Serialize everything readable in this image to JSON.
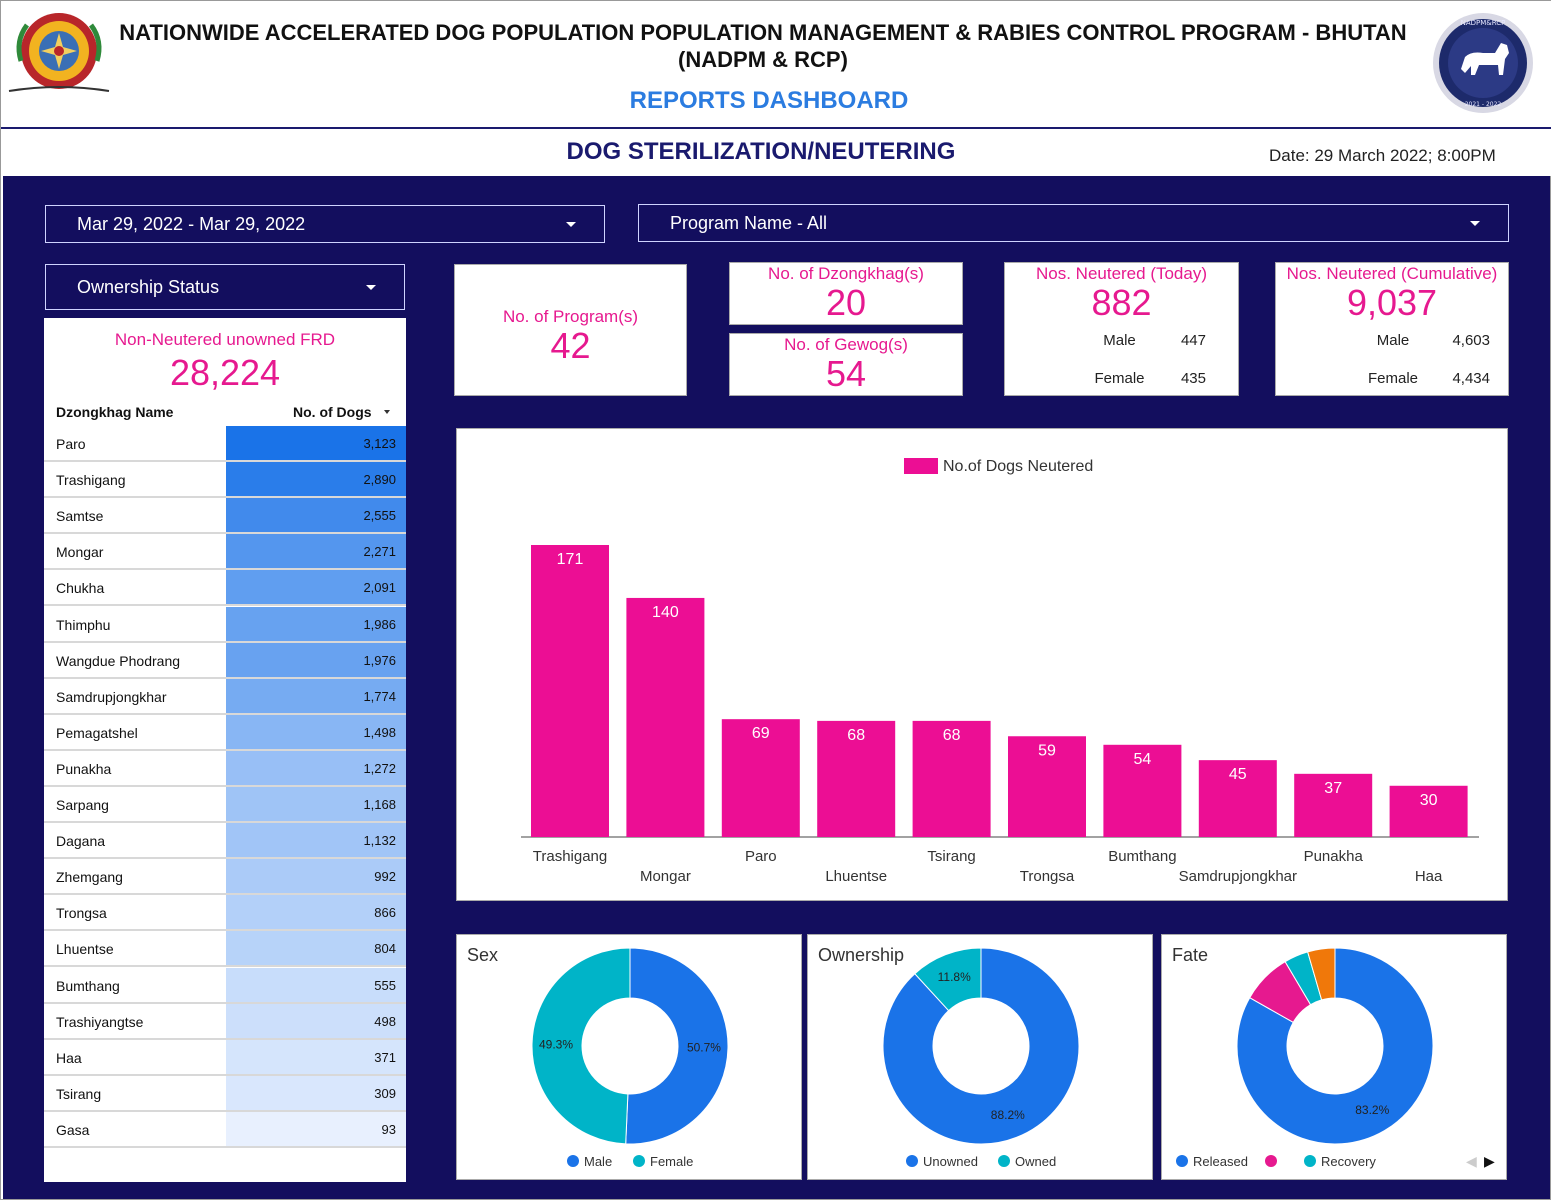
{
  "header": {
    "title_line1": "NATIONWIDE ACCELERATED DOG POPULATION POPULATION MANAGEMENT & RABIES CONTROL PROGRAM - BHUTAN",
    "title_line2": "(NADPM & RCP)",
    "reports": "REPORTS DASHBOARD",
    "section": "DOG STERILIZATION/NEUTERING",
    "date": "Date: 29 March 2022; 8:00PM",
    "badge_text_top": "NADPM&RCP",
    "badge_text_bottom": "2021 - 2022"
  },
  "filters": {
    "date_range": "Mar 29, 2022 - Mar 29, 2022",
    "program": "Program Name - All",
    "ownership": "Ownership Status"
  },
  "cards": {
    "programs": {
      "label": "No. of Program(s)",
      "value": "42"
    },
    "dzongkhags": {
      "label": "No. of Dzongkhag(s)",
      "value": "20"
    },
    "gewogs": {
      "label": "No. of Gewog(s)",
      "value": "54"
    },
    "today": {
      "label": "Nos. Neutered (Today)",
      "value": "882",
      "male_label": "Male",
      "male": "447",
      "female_label": "Female",
      "female": "435"
    },
    "cumulative": {
      "label": "Nos. Neutered (Cumulative)",
      "value": "9,037",
      "male_label": "Male",
      "male": "4,603",
      "female_label": "Female",
      "female": "4,434"
    }
  },
  "table": {
    "label": "Non-Neutered unowned FRD",
    "total": "28,224",
    "col_name": "Dzongkhag Name",
    "col_value": "No. of Dogs",
    "rows": [
      {
        "name": "Paro",
        "value": "3,123",
        "n": 3123
      },
      {
        "name": "Trashigang",
        "value": "2,890",
        "n": 2890
      },
      {
        "name": "Samtse",
        "value": "2,555",
        "n": 2555
      },
      {
        "name": "Mongar",
        "value": "2,271",
        "n": 2271
      },
      {
        "name": "Chukha",
        "value": "2,091",
        "n": 2091
      },
      {
        "name": "Thimphu",
        "value": "1,986",
        "n": 1986
      },
      {
        "name": "Wangdue Phodrang",
        "value": "1,976",
        "n": 1976
      },
      {
        "name": "Samdrupjongkhar",
        "value": "1,774",
        "n": 1774
      },
      {
        "name": "Pemagatshel",
        "value": "1,498",
        "n": 1498
      },
      {
        "name": "Punakha",
        "value": "1,272",
        "n": 1272
      },
      {
        "name": "Sarpang",
        "value": "1,168",
        "n": 1168
      },
      {
        "name": "Dagana",
        "value": "1,132",
        "n": 1132
      },
      {
        "name": "Zhemgang",
        "value": "992",
        "n": 992
      },
      {
        "name": "Trongsa",
        "value": "866",
        "n": 866
      },
      {
        "name": "Lhuentse",
        "value": "804",
        "n": 804
      },
      {
        "name": "Bumthang",
        "value": "555",
        "n": 555
      },
      {
        "name": "Trashiyangtse",
        "value": "498",
        "n": 498
      },
      {
        "name": "Haa",
        "value": "371",
        "n": 371
      },
      {
        "name": "Tsirang",
        "value": "309",
        "n": 309
      },
      {
        "name": "Gasa",
        "value": "93",
        "n": 93
      }
    ]
  },
  "chart_data": [
    {
      "type": "bar",
      "title": "",
      "legend": "No.of Dogs Neutered",
      "color": "#ec0e94",
      "categories": [
        "Trashigang",
        "Mongar",
        "Paro",
        "Lhuentse",
        "Tsirang",
        "Trongsa",
        "Bumthang",
        "Samdrupjongkhar",
        "Punakha",
        "Haa"
      ],
      "values": [
        171,
        140,
        69,
        68,
        68,
        59,
        54,
        45,
        37,
        30
      ],
      "ylim": [
        0,
        171
      ]
    },
    {
      "type": "pie",
      "title": "Sex",
      "labels": [
        "Male",
        "Female"
      ],
      "values": [
        50.7,
        49.3
      ],
      "pct_labels": [
        "50.7%",
        "49.3%"
      ],
      "colors": [
        "#1a73e8",
        "#00b4c8"
      ]
    },
    {
      "type": "pie",
      "title": "Ownership",
      "labels": [
        "Unowned",
        "Owned"
      ],
      "values": [
        88.2,
        11.8
      ],
      "pct_labels": [
        "88.2%",
        "11.8%"
      ],
      "colors": [
        "#1a73e8",
        "#00b4c8"
      ]
    },
    {
      "type": "pie",
      "title": "Fate",
      "labels": [
        "Released",
        "",
        "Recovery",
        ""
      ],
      "values": [
        83.2,
        8.3,
        4.0,
        4.5
      ],
      "pct_labels": [
        "83.2%",
        "",
        "",
        ""
      ],
      "colors": [
        "#1a73e8",
        "#e6198f",
        "#00b4c8",
        "#f0780a"
      ]
    }
  ],
  "colors": {
    "panel": "#130e5e",
    "accent_pink": "#e6198f",
    "accent_blue": "#2b7ce0"
  },
  "icons": {
    "emblem": "bhutan-emblem-icon",
    "badge": "dog-badge-icon",
    "dropdown": "caret-down-icon",
    "pager": "pager-arrows-icon"
  }
}
